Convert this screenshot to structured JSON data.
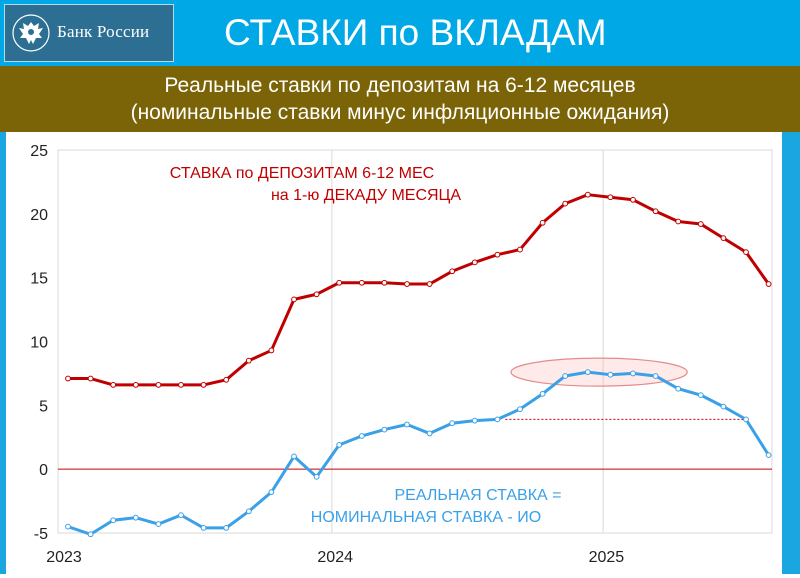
{
  "header": {
    "logo_text": "Банк России",
    "emblem_icon": "double-headed-eagle-icon",
    "title": "СТАВКИ по ВКЛАДАМ"
  },
  "subtitle": {
    "line1": "Реальные ставки по депозитам на 6-12 месяцев",
    "line2": "(номинальные ставки минус инфляционные ожидания)"
  },
  "colors": {
    "header_bg": "#00a8e6",
    "subtitle_bg": "#7b6408",
    "nominal_series": "#c00000",
    "real_series": "#3aa0e8",
    "zero_line": "#c00000"
  },
  "chart_data": {
    "type": "line",
    "x_labels": [
      "2023",
      "2024",
      "2025"
    ],
    "ylim": [
      -5,
      25
    ],
    "yticks": [
      "-5",
      "0",
      "5",
      "10",
      "15",
      "20",
      "25"
    ],
    "grid": "vertical",
    "annotations": [
      {
        "lines": [
          "СТАВКА по ДЕПОЗИТАМ 6-12 МЕС",
          "на 1-ю ДЕКАДУ МЕСЯЦА"
        ],
        "color": "#c00000"
      },
      {
        "lines": [
          "РЕАЛЬНАЯ СТАВКА =",
          "НОМИНАЛЬНАЯ СТАВКА - ИО"
        ],
        "color": "#3aa0e8"
      }
    ],
    "series": [
      {
        "values": [
          7.1,
          7.1,
          6.6,
          6.6,
          6.6,
          6.6,
          6.6,
          7.0,
          8.5,
          9.3,
          13.3,
          13.7,
          14.6,
          14.6,
          14.6,
          14.5,
          14.5,
          15.5,
          16.2,
          16.8,
          17.2,
          19.3,
          20.8,
          21.5,
          21.3,
          21.1,
          20.2,
          19.4,
          19.2,
          18.1,
          17.0,
          14.5
        ]
      },
      {
        "values": [
          -4.5,
          -5.1,
          -4.0,
          -3.8,
          -4.3,
          -3.6,
          -4.6,
          -4.6,
          -3.3,
          -1.8,
          1.0,
          -0.6,
          1.9,
          2.6,
          3.1,
          3.5,
          2.8,
          3.6,
          3.8,
          3.9,
          4.7,
          5.9,
          7.3,
          7.6,
          7.4,
          7.5,
          7.3,
          6.3,
          5.8,
          4.9,
          3.9,
          1.1
        ]
      }
    ]
  }
}
